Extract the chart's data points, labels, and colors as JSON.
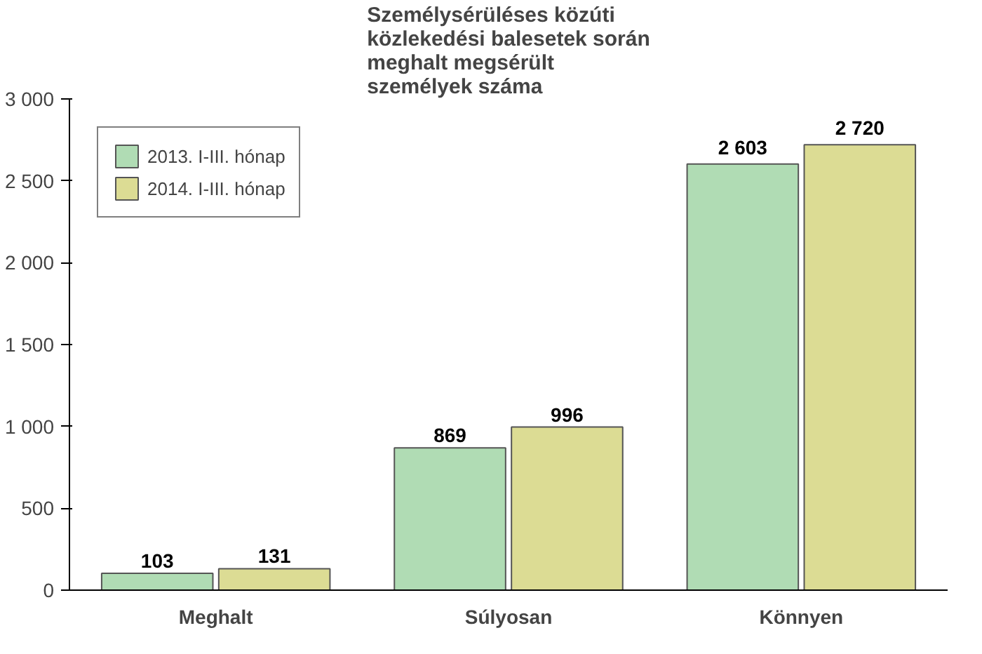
{
  "chart_data": {
    "type": "bar",
    "title": "Személysérüléses közúti\nközlekedési balesetek során\nmeghalt megsérült\nszemélyek száma",
    "categories": [
      "Meghalt",
      "Súlyosan",
      "Könnyen"
    ],
    "series": [
      {
        "name": "2013. I-III. hónap",
        "color": "#b0dcb4",
        "values": [
          103,
          869,
          2603
        ],
        "value_labels": [
          "103",
          "869",
          "2 603"
        ]
      },
      {
        "name": "2014. I-III. hónap",
        "color": "#dcdc94",
        "values": [
          131,
          996,
          2720
        ],
        "value_labels": [
          "131",
          "996",
          "2 720"
        ]
      }
    ],
    "ylim": [
      0,
      3000
    ],
    "yticks": [
      {
        "value": 0,
        "label": "0"
      },
      {
        "value": 500,
        "label": "500"
      },
      {
        "value": 1000,
        "label": "1 000"
      },
      {
        "value": 1500,
        "label": "1 500"
      },
      {
        "value": 2000,
        "label": "2 000"
      },
      {
        "value": 2500,
        "label": "2 500"
      },
      {
        "value": 3000,
        "label": "3 000"
      }
    ],
    "grid": false,
    "legend": "top left"
  }
}
